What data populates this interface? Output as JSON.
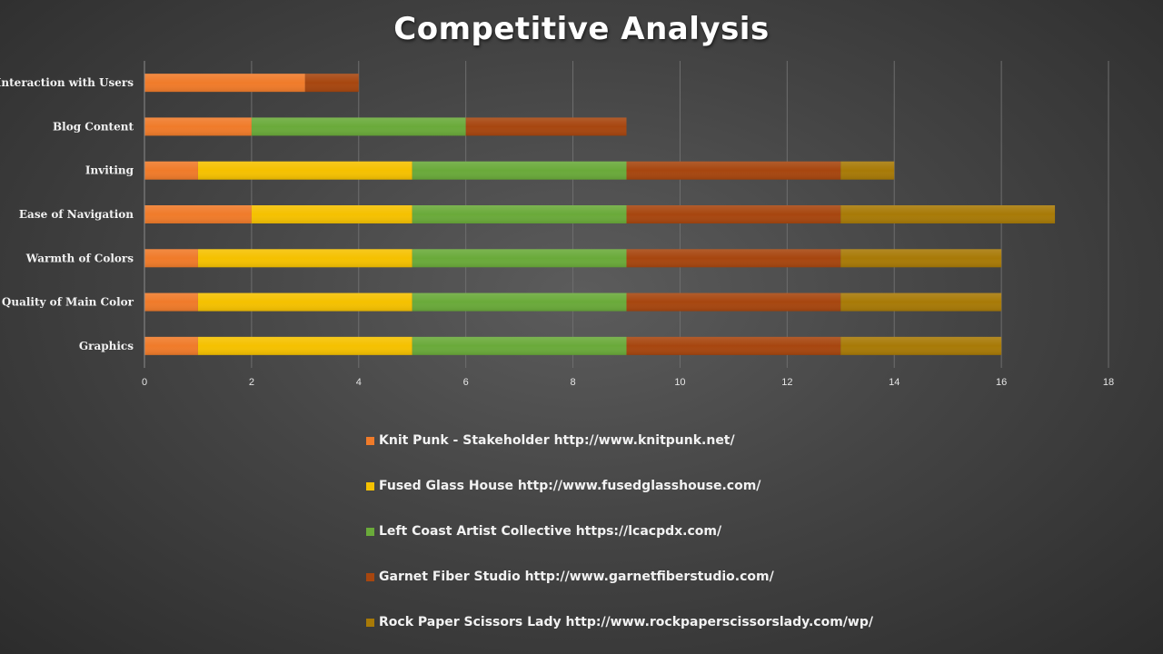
{
  "chart_data": {
    "type": "bar",
    "orientation": "horizontal",
    "stacked": true,
    "title": "Competitive Analysis",
    "categories": [
      "Interaction with Users",
      "Blog Content",
      "Inviting",
      "Ease of Navigation",
      "Warmth of Colors",
      "Quality of Main Color",
      "Graphics"
    ],
    "series": [
      {
        "name": "Knit Punk - Stakeholder http://www.knitpunk.net/",
        "color": "#f07b2a",
        "values": [
          3,
          2,
          1,
          2,
          1,
          1,
          1
        ]
      },
      {
        "name": "Fused Glass House http://www.fusedglasshouse.com/",
        "color": "#f5c100",
        "values": [
          0,
          0,
          4,
          3,
          4,
          4,
          4
        ]
      },
      {
        "name": "Left Coast Artist Collective https://lcacpdx.com/",
        "color": "#6aaa3a",
        "values": [
          0,
          4,
          4,
          4,
          4,
          4,
          4
        ]
      },
      {
        "name": "Garnet Fiber Studio http://www.garnetfiberstudio.com/",
        "color": "#a7460f",
        "values": [
          1,
          3,
          4,
          4,
          4,
          4,
          4
        ]
      },
      {
        "name": "Rock Paper Scissors Lady http://www.rockpaperscissorslady.com/wp/",
        "color": "#a87a07",
        "values": [
          0,
          0,
          1,
          4,
          3,
          3,
          3
        ]
      }
    ],
    "xlim": [
      0,
      18
    ],
    "xticks": [
      "0",
      "2",
      "4",
      "6",
      "8",
      "10",
      "12",
      "14",
      "16",
      "18"
    ],
    "grid": true,
    "legend": "bottom"
  }
}
